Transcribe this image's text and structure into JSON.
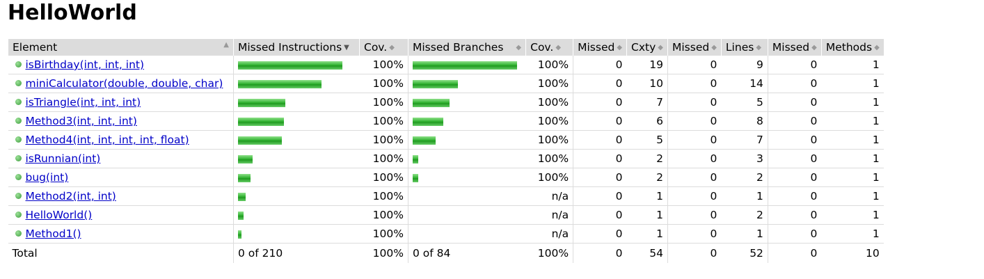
{
  "title": "HelloWorld",
  "columns": {
    "element": "Element",
    "missed_instructions": "Missed Instructions",
    "cov1": "Cov.",
    "missed_branches": "Missed Branches",
    "cov2": "Cov.",
    "missed_cxty": "Missed",
    "cxty": "Cxty",
    "missed_lines": "Missed",
    "lines": "Lines",
    "missed_methods": "Missed",
    "methods": "Methods"
  },
  "sort_icons": {
    "inactive": "sort-icon",
    "active": "sort-desc-icon"
  },
  "bar_color": "#33b533",
  "rows": [
    {
      "name": "isBirthday(int, int, int)",
      "instr_bar": 1.0,
      "cov1": "100%",
      "branch_bar": 1.0,
      "cov2": "100%",
      "missed_cxty": "0",
      "cxty": "19",
      "missed_lines": "0",
      "lines": "9",
      "missed_methods": "0",
      "methods": "1"
    },
    {
      "name": "miniCalculator(double, double, char)",
      "instr_bar": 0.8,
      "cov1": "100%",
      "branch_bar": 0.43,
      "cov2": "100%",
      "missed_cxty": "0",
      "cxty": "10",
      "missed_lines": "0",
      "lines": "14",
      "missed_methods": "0",
      "methods": "1"
    },
    {
      "name": "isTriangle(int, int, int)",
      "instr_bar": 0.45,
      "cov1": "100%",
      "branch_bar": 0.35,
      "cov2": "100%",
      "missed_cxty": "0",
      "cxty": "7",
      "missed_lines": "0",
      "lines": "5",
      "missed_methods": "0",
      "methods": "1"
    },
    {
      "name": "Method3(int, int, int)",
      "instr_bar": 0.44,
      "cov1": "100%",
      "branch_bar": 0.29,
      "cov2": "100%",
      "missed_cxty": "0",
      "cxty": "6",
      "missed_lines": "0",
      "lines": "8",
      "missed_methods": "0",
      "methods": "1"
    },
    {
      "name": "Method4(int, int, int, int, float)",
      "instr_bar": 0.42,
      "cov1": "100%",
      "branch_bar": 0.22,
      "cov2": "100%",
      "missed_cxty": "0",
      "cxty": "5",
      "missed_lines": "0",
      "lines": "7",
      "missed_methods": "0",
      "methods": "1"
    },
    {
      "name": "isRunnian(int)",
      "instr_bar": 0.14,
      "cov1": "100%",
      "branch_bar": 0.05,
      "cov2": "100%",
      "missed_cxty": "0",
      "cxty": "2",
      "missed_lines": "0",
      "lines": "3",
      "missed_methods": "0",
      "methods": "1"
    },
    {
      "name": "bug(int)",
      "instr_bar": 0.12,
      "cov1": "100%",
      "branch_bar": 0.05,
      "cov2": "100%",
      "missed_cxty": "0",
      "cxty": "2",
      "missed_lines": "0",
      "lines": "2",
      "missed_methods": "0",
      "methods": "1"
    },
    {
      "name": "Method2(int, int)",
      "instr_bar": 0.07,
      "cov1": "100%",
      "branch_bar": 0,
      "cov2": "n/a",
      "missed_cxty": "0",
      "cxty": "1",
      "missed_lines": "0",
      "lines": "1",
      "missed_methods": "0",
      "methods": "1"
    },
    {
      "name": "HelloWorld()",
      "instr_bar": 0.05,
      "cov1": "100%",
      "branch_bar": 0,
      "cov2": "n/a",
      "missed_cxty": "0",
      "cxty": "1",
      "missed_lines": "0",
      "lines": "2",
      "missed_methods": "0",
      "methods": "1"
    },
    {
      "name": "Method1()",
      "instr_bar": 0.03,
      "cov1": "100%",
      "branch_bar": 0,
      "cov2": "n/a",
      "missed_cxty": "0",
      "cxty": "1",
      "missed_lines": "0",
      "lines": "1",
      "missed_methods": "0",
      "methods": "1"
    }
  ],
  "total": {
    "label": "Total",
    "missed_instructions": "0 of 210",
    "cov1": "100%",
    "missed_branches": "0 of 84",
    "cov2": "100%",
    "missed_cxty": "0",
    "cxty": "54",
    "missed_lines": "0",
    "lines": "52",
    "missed_methods": "0",
    "methods": "10"
  }
}
